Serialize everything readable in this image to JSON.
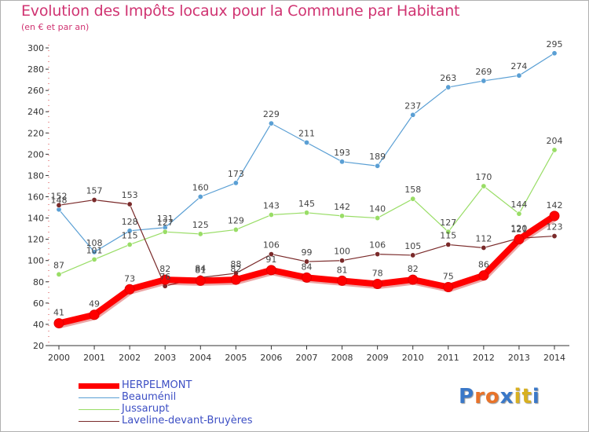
{
  "title": "Evolution des Impôts locaux pour la Commune par Habitant",
  "subtitle": "(en € et par an)",
  "logo_text": "Proxiti",
  "chart_data": {
    "type": "line",
    "title": "Evolution des Impôts locaux pour la Commune par Habitant",
    "ylabel": "(en € et par an)",
    "xlabel": "",
    "categories": [
      "2000",
      "2001",
      "2002",
      "2003",
      "2004",
      "2005",
      "2006",
      "2007",
      "2008",
      "2009",
      "2010",
      "2011",
      "2012",
      "2013",
      "2014"
    ],
    "ylim": [
      20,
      300
    ],
    "yticks": [
      20,
      40,
      60,
      80,
      100,
      120,
      140,
      160,
      180,
      200,
      220,
      240,
      260,
      280,
      300
    ],
    "grid": false,
    "series": [
      {
        "name": "HERPELMONT",
        "color": "#ff0000",
        "values": [
          41,
          49,
          73,
          82,
          81,
          82,
          91,
          84,
          81,
          78,
          82,
          75,
          86,
          120,
          142
        ]
      },
      {
        "name": "Beauménil",
        "color": "#5a9fd4",
        "values": [
          148,
          108,
          128,
          131,
          160,
          173,
          229,
          211,
          193,
          189,
          237,
          263,
          269,
          274,
          295
        ]
      },
      {
        "name": "Jussarupt",
        "color": "#99dd66",
        "values": [
          87,
          101,
          115,
          127,
          125,
          129,
          143,
          145,
          142,
          140,
          158,
          127,
          170,
          144,
          204
        ]
      },
      {
        "name": "Laveline-devant-Bruyères",
        "color": "#7a2a2a",
        "values": [
          152,
          157,
          153,
          76,
          84,
          88,
          106,
          99,
          100,
          106,
          105,
          115,
          112,
          121,
          123
        ]
      }
    ]
  }
}
